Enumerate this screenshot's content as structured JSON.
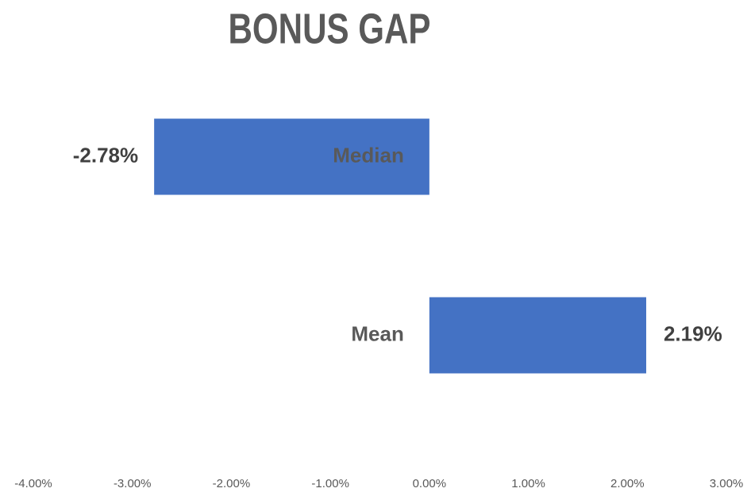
{
  "chart_data": {
    "type": "bar",
    "orientation": "horizontal",
    "title": "BONUS GAP",
    "categories": [
      "Median",
      "Mean"
    ],
    "values": [
      -2.78,
      2.19
    ],
    "value_labels": [
      "-2.78%",
      "2.19%"
    ],
    "color": "#4472c4",
    "xlim": [
      -4,
      3
    ],
    "xticks": [
      {
        "value": -4,
        "label": "-4.00%"
      },
      {
        "value": -3,
        "label": "-3.00%"
      },
      {
        "value": -2,
        "label": "-2.00%"
      },
      {
        "value": -1,
        "label": "-1.00%"
      },
      {
        "value": 0,
        "label": "0.00%"
      },
      {
        "value": 1,
        "label": "1.00%"
      },
      {
        "value": 2,
        "label": "2.00%"
      },
      {
        "value": 3,
        "label": "3.00%"
      }
    ],
    "grid": false
  }
}
